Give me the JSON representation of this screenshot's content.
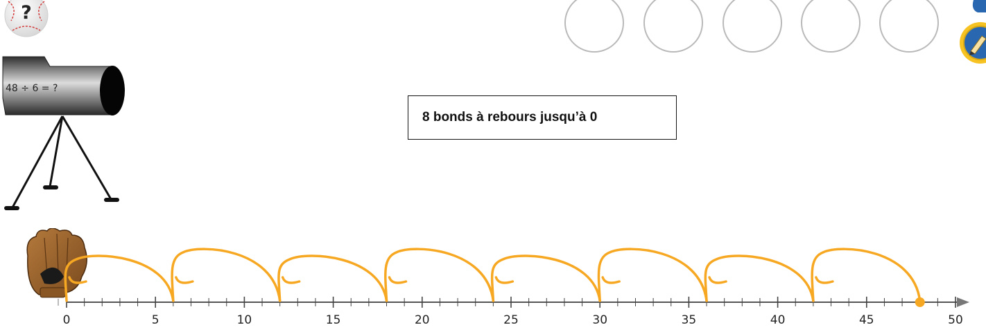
{
  "help_button": {
    "label": "?"
  },
  "answer_slots": [
    "",
    "",
    "",
    "",
    ""
  ],
  "cannon": {
    "equation": "48 ÷ 6 = ?"
  },
  "hint": {
    "text": "8 bonds à rebours jusqu’à 0"
  },
  "number_line": {
    "min": 0,
    "max": 50,
    "labels": [
      "0",
      "5",
      "10",
      "15",
      "20",
      "25",
      "30",
      "35",
      "40",
      "45",
      "50"
    ],
    "jumps": [
      [
        48,
        42
      ],
      [
        42,
        36
      ],
      [
        36,
        30
      ],
      [
        30,
        24
      ],
      [
        24,
        18
      ],
      [
        18,
        12
      ],
      [
        12,
        6
      ],
      [
        6,
        0
      ]
    ],
    "marker_value": 48
  },
  "colors": {
    "jump_stroke": "#f7a823",
    "marker": "#f7a823",
    "slot_border": "#b9b9b9",
    "pencil_ring": "#f6c323",
    "pencil_face": "#2a67b1"
  },
  "icons": {
    "help": "baseball-question-icon",
    "pencil": "pencil-icon",
    "glove": "baseball-glove-icon",
    "cannon": "cannon-icon"
  }
}
